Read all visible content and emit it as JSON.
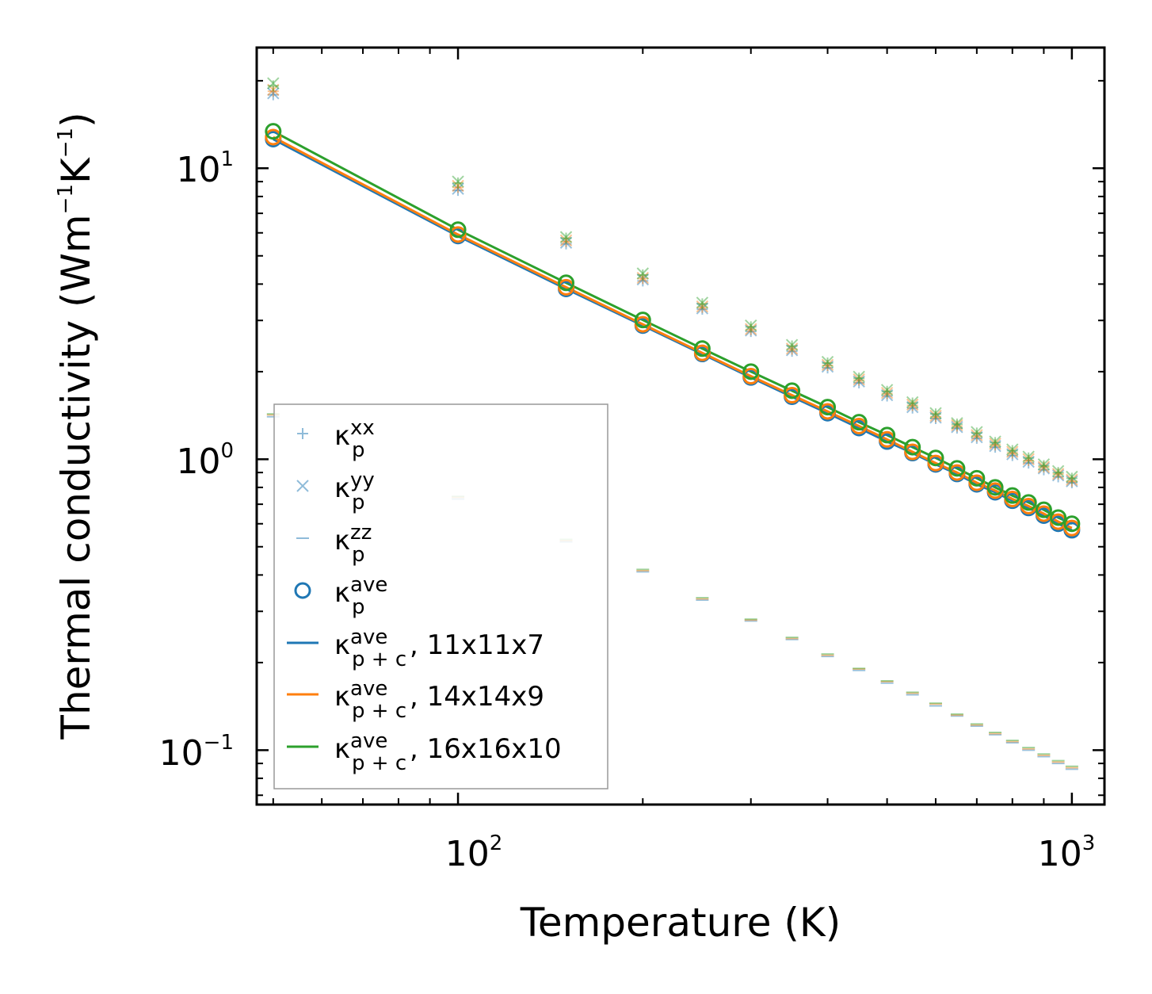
{
  "chart_data": {
    "type": "scatter",
    "xscale": "log",
    "yscale": "log",
    "xlim": [
      47,
      1130
    ],
    "ylim": [
      0.065,
      26
    ],
    "xlabel": "Temperature (K)",
    "ylabel_main": "Thermal conductivity (Wm",
    "ylabel_exp1": "−1",
    "ylabel_mid": "K",
    "ylabel_exp2": "−1",
    "ylabel_end": ")",
    "xticks": [
      {
        "base": "10",
        "exp": "2"
      },
      {
        "base": "10",
        "exp": "3"
      }
    ],
    "yticks": [
      {
        "base": "10",
        "exp": "1"
      },
      {
        "base": "10",
        "exp": "0"
      },
      {
        "base": "10",
        "exp": "−1"
      }
    ],
    "x": [
      50,
      100,
      150,
      200,
      250,
      300,
      350,
      400,
      450,
      500,
      550,
      600,
      650,
      700,
      750,
      800,
      850,
      900,
      950,
      1000
    ],
    "colors": {
      "c11": "#1f77b4",
      "c14": "#ff7f0e",
      "c16": "#2ca02c"
    },
    "point_series": [
      {
        "name": "kxx_11x11x7",
        "marker": "plus",
        "color": "#1f77b4",
        "values": [
          17.9,
          8.4,
          5.5,
          4.1,
          3.28,
          2.75,
          2.35,
          2.06,
          1.83,
          1.65,
          1.5,
          1.38,
          1.28,
          1.18,
          1.1,
          1.03,
          0.97,
          0.92,
          0.87,
          0.83
        ]
      },
      {
        "name": "kyy_11x11x7",
        "marker": "x",
        "color": "#1f77b4",
        "values": [
          18.1,
          8.5,
          5.55,
          4.15,
          3.3,
          2.77,
          2.37,
          2.08,
          1.85,
          1.66,
          1.51,
          1.39,
          1.29,
          1.19,
          1.11,
          1.04,
          0.98,
          0.93,
          0.88,
          0.84
        ]
      },
      {
        "name": "kxx_14x14x9",
        "marker": "plus",
        "color": "#ff7f0e",
        "values": [
          18.4,
          8.6,
          5.6,
          4.18,
          3.33,
          2.79,
          2.39,
          2.1,
          1.87,
          1.68,
          1.53,
          1.4,
          1.3,
          1.2,
          1.12,
          1.05,
          0.99,
          0.94,
          0.89,
          0.84
        ]
      },
      {
        "name": "kyy_14x14x9",
        "marker": "x",
        "color": "#ff7f0e",
        "values": [
          18.6,
          8.7,
          5.65,
          4.2,
          3.35,
          2.8,
          2.4,
          2.11,
          1.88,
          1.69,
          1.54,
          1.41,
          1.31,
          1.21,
          1.13,
          1.06,
          1.0,
          0.94,
          0.89,
          0.85
        ]
      },
      {
        "name": "kxx_16x16x10",
        "marker": "plus",
        "color": "#2ca02c",
        "values": [
          19.2,
          8.9,
          5.75,
          4.3,
          3.42,
          2.85,
          2.45,
          2.14,
          1.9,
          1.71,
          1.56,
          1.43,
          1.32,
          1.23,
          1.14,
          1.07,
          1.01,
          0.95,
          0.9,
          0.86
        ]
      },
      {
        "name": "kyy_16x16x10",
        "marker": "x",
        "color": "#2ca02c",
        "values": [
          19.6,
          9.0,
          5.8,
          4.35,
          3.45,
          2.88,
          2.47,
          2.16,
          1.92,
          1.73,
          1.57,
          1.44,
          1.33,
          1.24,
          1.15,
          1.08,
          1.02,
          0.96,
          0.91,
          0.87
        ]
      },
      {
        "name": "kzz_11x11x7",
        "marker": "dash",
        "color": "#1f77b4",
        "values": [
          1.4,
          0.73,
          0.52,
          0.41,
          0.328,
          0.278,
          0.24,
          0.21,
          0.188,
          0.17,
          0.155,
          0.142,
          0.131,
          0.121,
          0.113,
          0.106,
          0.1,
          0.095,
          0.09,
          0.086
        ]
      },
      {
        "name": "kzz_14x14x9",
        "marker": "dash",
        "color": "#ff7f0e",
        "values": [
          1.42,
          0.74,
          0.525,
          0.414,
          0.331,
          0.28,
          0.242,
          0.212,
          0.19,
          0.172,
          0.157,
          0.144,
          0.132,
          0.122,
          0.114,
          0.107,
          0.101,
          0.096,
          0.091,
          0.087
        ]
      },
      {
        "name": "kzz_16x16x10",
        "marker": "dash",
        "color": "#2ca02c",
        "values": [
          1.43,
          0.745,
          0.53,
          0.418,
          0.334,
          0.282,
          0.244,
          0.214,
          0.191,
          0.173,
          0.158,
          0.145,
          0.133,
          0.123,
          0.115,
          0.108,
          0.102,
          0.097,
          0.092,
          0.088
        ]
      },
      {
        "name": "kave_11x11x7",
        "marker": "circle",
        "color": "#1f77b4",
        "values": [
          12.6,
          5.85,
          3.85,
          2.88,
          2.3,
          1.91,
          1.64,
          1.44,
          1.28,
          1.15,
          1.05,
          0.96,
          0.89,
          0.82,
          0.77,
          0.72,
          0.68,
          0.64,
          0.6,
          0.57
        ]
      },
      {
        "name": "kave_14x14x9",
        "marker": "circle",
        "color": "#ff7f0e",
        "values": [
          12.8,
          5.92,
          3.9,
          2.91,
          2.32,
          1.93,
          1.66,
          1.46,
          1.3,
          1.17,
          1.06,
          0.97,
          0.9,
          0.83,
          0.78,
          0.73,
          0.69,
          0.65,
          0.61,
          0.58
        ]
      },
      {
        "name": "kave_16x16x10",
        "marker": "circle",
        "color": "#2ca02c",
        "values": [
          13.4,
          6.15,
          4.04,
          3.01,
          2.4,
          2.0,
          1.72,
          1.51,
          1.34,
          1.21,
          1.1,
          1.01,
          0.93,
          0.86,
          0.8,
          0.75,
          0.71,
          0.67,
          0.63,
          0.6
        ]
      }
    ],
    "line_series": [
      {
        "name": "kpc_11x11x7",
        "color": "#1f77b4",
        "values": [
          12.6,
          5.85,
          3.85,
          2.88,
          2.3,
          1.91,
          1.64,
          1.44,
          1.28,
          1.15,
          1.05,
          0.96,
          0.89,
          0.82,
          0.77,
          0.72,
          0.68,
          0.64,
          0.6,
          0.57
        ]
      },
      {
        "name": "kpc_14x14x9",
        "color": "#ff7f0e",
        "values": [
          12.8,
          5.92,
          3.9,
          2.91,
          2.32,
          1.93,
          1.66,
          1.46,
          1.3,
          1.17,
          1.06,
          0.97,
          0.9,
          0.83,
          0.78,
          0.73,
          0.69,
          0.65,
          0.61,
          0.58
        ]
      },
      {
        "name": "kpc_16x16x10",
        "color": "#2ca02c",
        "values": [
          13.4,
          6.15,
          4.04,
          3.01,
          2.4,
          2.0,
          1.72,
          1.51,
          1.34,
          1.21,
          1.1,
          1.01,
          0.93,
          0.86,
          0.8,
          0.75,
          0.71,
          0.67,
          0.63,
          0.6
        ]
      }
    ],
    "legend": {
      "placement": "lower-left",
      "entries": [
        {
          "marker": "plus",
          "color": "#1f77b4",
          "sym": "κ",
          "sub": "p",
          "sup": "xx",
          "suffix": ""
        },
        {
          "marker": "x",
          "color": "#1f77b4",
          "sym": "κ",
          "sub": "p",
          "sup": "yy",
          "suffix": ""
        },
        {
          "marker": "dash",
          "color": "#1f77b4",
          "sym": "κ",
          "sub": "p",
          "sup": "zz",
          "suffix": ""
        },
        {
          "marker": "circle",
          "color": "#1f77b4",
          "sym": "κ",
          "sub": "p",
          "sup": "ave",
          "suffix": ""
        },
        {
          "marker": "line",
          "color": "#1f77b4",
          "sym": "κ",
          "sub": "p + c",
          "sup": "ave",
          "suffix": ", 11x11x7"
        },
        {
          "marker": "line",
          "color": "#ff7f0e",
          "sym": "κ",
          "sub": "p + c",
          "sup": "ave",
          "suffix": ", 14x14x9"
        },
        {
          "marker": "line",
          "color": "#2ca02c",
          "sym": "κ",
          "sub": "p + c",
          "sup": "ave",
          "suffix": ", 16x16x10"
        }
      ]
    }
  }
}
